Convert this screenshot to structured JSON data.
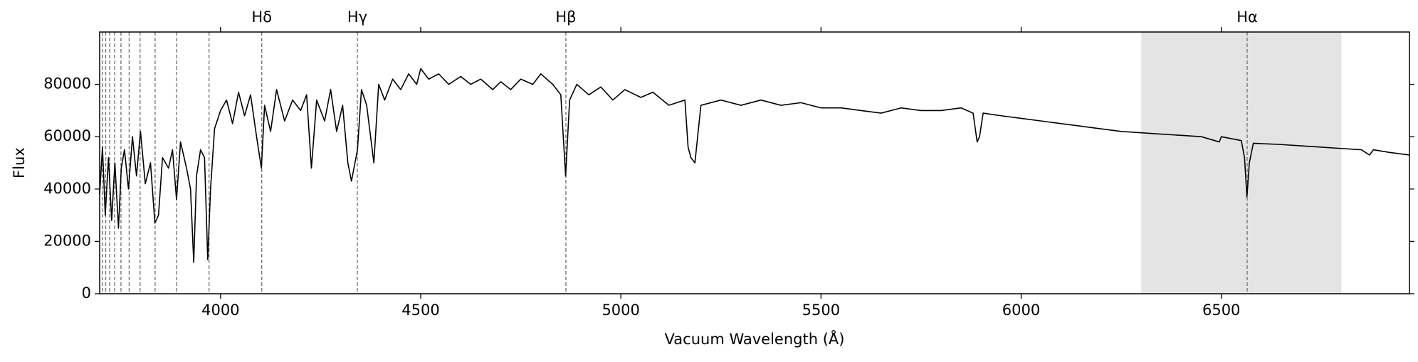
{
  "chart_data": {
    "type": "line",
    "x_label": "Vacuum Wavelength (Å)",
    "y_label": "Flux",
    "xlim": [
      3698,
      6970
    ],
    "ylim": [
      0,
      100000
    ],
    "xticks": [
      4000,
      4500,
      5000,
      5500,
      6000,
      6500
    ],
    "yticks": [
      0,
      20000,
      40000,
      60000,
      80000
    ],
    "shaded_region": [
      6300,
      6800
    ],
    "shade_color": "#e4e4e4",
    "reference_lines": [
      {
        "value": 4102.9,
        "label": "Hδ"
      },
      {
        "value": 4341.7,
        "label": "Hγ"
      },
      {
        "value": 4862.7,
        "label": "Hβ"
      },
      {
        "value": 6564.6,
        "label": "Hα"
      },
      3971.2,
      3890.2,
      3836.5,
      3799.0,
      3771.7,
      3751.2,
      3735.4,
      3723.0,
      3713.0,
      3704.9
    ],
    "series": [
      {
        "color": "#000000",
        "x": [
          3698,
          3705,
          3712,
          3720,
          3728,
          3736,
          3745,
          3752,
          3760,
          3770,
          3780,
          3790,
          3800,
          3812,
          3825,
          3836,
          3845,
          3855,
          3870,
          3880,
          3890,
          3900,
          3915,
          3925,
          3933,
          3940,
          3950,
          3960,
          3968,
          3975,
          3985,
          4000,
          4015,
          4030,
          4045,
          4060,
          4075,
          4090,
          4102,
          4110,
          4125,
          4140,
          4160,
          4180,
          4200,
          4215,
          4227,
          4240,
          4260,
          4275,
          4290,
          4305,
          4318,
          4327,
          4342,
          4352,
          4365,
          4383,
          4395,
          4410,
          4430,
          4450,
          4470,
          4490,
          4500,
          4520,
          4545,
          4570,
          4600,
          4625,
          4650,
          4680,
          4700,
          4725,
          4750,
          4780,
          4800,
          4830,
          4850,
          4862,
          4872,
          4890,
          4920,
          4950,
          4980,
          5010,
          5050,
          5080,
          5120,
          5160,
          5168,
          5175,
          5185,
          5200,
          5250,
          5300,
          5350,
          5400,
          5450,
          5500,
          5550,
          5600,
          5650,
          5700,
          5750,
          5800,
          5850,
          5880,
          5890,
          5896,
          5905,
          5950,
          6000,
          6050,
          6100,
          6150,
          6200,
          6250,
          6300,
          6350,
          6400,
          6450,
          6495,
          6500,
          6550,
          6558,
          6564,
          6570,
          6580,
          6650,
          6700,
          6750,
          6800,
          6850,
          6870,
          6880,
          6920,
          6970
        ],
        "values": [
          38000,
          56000,
          30000,
          52000,
          28000,
          50000,
          25000,
          48000,
          55000,
          40000,
          60000,
          45000,
          62000,
          42000,
          50000,
          27000,
          30000,
          52000,
          48000,
          55000,
          36000,
          58000,
          48000,
          40000,
          12000,
          45000,
          55000,
          52000,
          13000,
          40000,
          63000,
          70000,
          74000,
          65000,
          77000,
          68000,
          76000,
          60000,
          48000,
          72000,
          62000,
          78000,
          66000,
          74000,
          70000,
          76000,
          48000,
          74000,
          66000,
          78000,
          62000,
          72000,
          50000,
          43000,
          55000,
          78000,
          72000,
          50000,
          80000,
          74000,
          82000,
          78000,
          84000,
          80000,
          86000,
          82000,
          84000,
          80000,
          83000,
          80000,
          82000,
          78000,
          81000,
          78000,
          82000,
          80000,
          84000,
          80000,
          76000,
          45000,
          74000,
          80000,
          76000,
          79000,
          74000,
          78000,
          75000,
          77000,
          72000,
          74000,
          56000,
          52000,
          50000,
          72000,
          74000,
          72000,
          74000,
          72000,
          73000,
          71000,
          71000,
          70000,
          69000,
          71000,
          70000,
          70000,
          71000,
          69000,
          58000,
          60000,
          69000,
          68000,
          67000,
          66000,
          65000,
          64000,
          63000,
          62000,
          61500,
          61000,
          60500,
          60000,
          58000,
          60000,
          58500,
          52000,
          37000,
          50000,
          57500,
          57000,
          56500,
          56000,
          55500,
          55000,
          53000,
          55000,
          54000,
          53000
        ]
      }
    ]
  }
}
